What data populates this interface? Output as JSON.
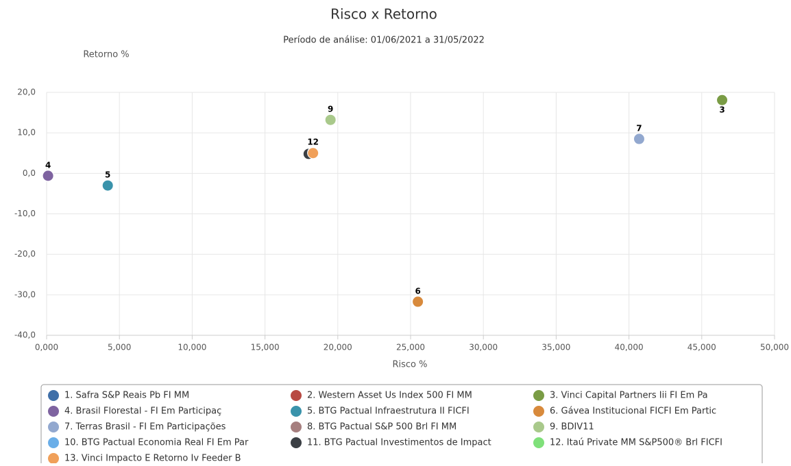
{
  "chart_data": {
    "type": "scatter",
    "title": "Risco x Retorno",
    "subtitle": "Período de análise: 01/06/2021 a 31/05/2022",
    "x_label": "Risco %",
    "y_label": "Retorno %",
    "xlim": [
      0,
      50
    ],
    "ylim": [
      -40,
      20
    ],
    "xticks": [
      {
        "value": 0,
        "label": "0,000"
      },
      {
        "value": 5,
        "label": "5,000"
      },
      {
        "value": 10,
        "label": "10,000"
      },
      {
        "value": 15,
        "label": "15,000"
      },
      {
        "value": 20,
        "label": "20,000"
      },
      {
        "value": 25,
        "label": "25,000"
      },
      {
        "value": 30,
        "label": "30,000"
      },
      {
        "value": 35,
        "label": "35,000"
      },
      {
        "value": 40,
        "label": "40,000"
      },
      {
        "value": 45,
        "label": "45,000"
      },
      {
        "value": 50,
        "label": "50,000"
      }
    ],
    "yticks": [
      {
        "value": 20,
        "label": "20,0"
      },
      {
        "value": 10,
        "label": "10,0"
      },
      {
        "value": 0,
        "label": "0,0"
      },
      {
        "value": -10,
        "label": "-10,0"
      },
      {
        "value": -20,
        "label": "-20,0"
      },
      {
        "value": -30,
        "label": "-30,0"
      },
      {
        "value": -40,
        "label": "-40,0"
      }
    ],
    "grid": true,
    "series": [
      {
        "name": "1. Safra S&P Reais Pb FI MM",
        "color": "#3f6fa8",
        "x": [
          18.1
        ],
        "values": [
          4.8
        ]
      },
      {
        "name": "2. Western Asset Us Index 500 FI MM",
        "color": "#b84a43",
        "x": [
          18.2
        ],
        "values": [
          5.1
        ]
      },
      {
        "name": "3. Vinci Capital Partners Iii FI Em Pa",
        "color": "#7a9c45",
        "x": [
          46.4
        ],
        "values": [
          18.1
        ],
        "labels": [
          "3"
        ],
        "label_below": true
      },
      {
        "name": "4. Brasil Florestal - FI Em Participaç",
        "color": "#7e63a0",
        "x": [
          0.1
        ],
        "values": [
          -0.6
        ],
        "labels": [
          "4"
        ]
      },
      {
        "name": "5. BTG Pactual Infraestrutura II FICFI",
        "color": "#3a93ab",
        "x": [
          4.2
        ],
        "values": [
          -3.0
        ],
        "labels": [
          "5"
        ]
      },
      {
        "name": "6. Gávea Institucional FICFI Em Partic",
        "color": "#d88a3c",
        "x": [
          25.5
        ],
        "values": [
          -31.7
        ],
        "labels": [
          "6"
        ]
      },
      {
        "name": "7. Terras Brasil - FI Em Participações",
        "color": "#92a8cf",
        "x": [
          40.7
        ],
        "values": [
          8.5
        ],
        "labels": [
          "7"
        ]
      },
      {
        "name": "8. BTG Pactual S&P 500 Brl FI MM",
        "color": "#a67f7f",
        "x": [
          18.1
        ],
        "values": [
          4.9
        ]
      },
      {
        "name": "9. BDIV11",
        "color": "#a9c98b",
        "x": [
          19.5
        ],
        "values": [
          13.2
        ],
        "labels": [
          "9"
        ]
      },
      {
        "name": "10. BTG Pactual Economia Real FI Em Par",
        "color": "#6aaee8",
        "x": [
          18.2
        ],
        "values": [
          5.0
        ]
      },
      {
        "name": "11. BTG Pactual Investimentos de Impact",
        "color": "#3b3f44",
        "x": [
          18.0
        ],
        "values": [
          4.8
        ]
      },
      {
        "name": "12. Itaú Private MM S&P500® Brl FICFI",
        "color": "#7fe07a",
        "x": [
          18.3
        ],
        "values": [
          5.1
        ],
        "labels": [
          "12"
        ]
      },
      {
        "name": "13. Vinci Impacto E Retorno Iv Feeder B",
        "color": "#f0a05a",
        "x": [
          18.3
        ],
        "values": [
          5.0
        ]
      }
    ]
  }
}
